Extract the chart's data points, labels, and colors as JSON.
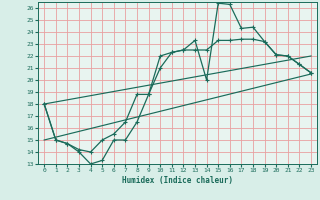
{
  "title": "",
  "xlabel": "Humidex (Indice chaleur)",
  "background_color": "#d8eee8",
  "plot_bg_color": "#e8f4f0",
  "grid_color": "#e8a0a0",
  "line_color": "#1a6b5a",
  "xlim": [
    -0.5,
    23.5
  ],
  "ylim": [
    13,
    26.5
  ],
  "xticks": [
    0,
    1,
    2,
    3,
    4,
    5,
    6,
    7,
    8,
    9,
    10,
    11,
    12,
    13,
    14,
    15,
    16,
    17,
    18,
    19,
    20,
    21,
    22,
    23
  ],
  "yticks": [
    13,
    14,
    15,
    16,
    17,
    18,
    19,
    20,
    21,
    22,
    23,
    24,
    25,
    26
  ],
  "line1_x": [
    0,
    1,
    2,
    3,
    4,
    5,
    6,
    7,
    8,
    9,
    10,
    11,
    12,
    13,
    14,
    15,
    16,
    17,
    18,
    19,
    20,
    21,
    22,
    23
  ],
  "line1_y": [
    18,
    15,
    14.7,
    14,
    13,
    13.3,
    15,
    15,
    16.5,
    18.8,
    21.0,
    22.3,
    22.5,
    23.3,
    20.0,
    26.4,
    26.3,
    24.3,
    24.4,
    23.2,
    22.1,
    22.0,
    21.3,
    20.6
  ],
  "line2_x": [
    0,
    1,
    2,
    3,
    4,
    5,
    6,
    7,
    8,
    9,
    10,
    11,
    12,
    13,
    14,
    15,
    16,
    17,
    18,
    19,
    20,
    21,
    22,
    23
  ],
  "line2_y": [
    18,
    15,
    14.7,
    14.2,
    14.0,
    15.0,
    15.5,
    16.5,
    18.8,
    18.8,
    22.0,
    22.3,
    22.5,
    22.5,
    22.5,
    23.3,
    23.3,
    23.4,
    23.4,
    23.2,
    22.1,
    22.0,
    21.3,
    20.6
  ],
  "line3_x": [
    0,
    23
  ],
  "line3_y": [
    15.0,
    20.5
  ],
  "line4_x": [
    0,
    23
  ],
  "line4_y": [
    18.0,
    22.0
  ]
}
